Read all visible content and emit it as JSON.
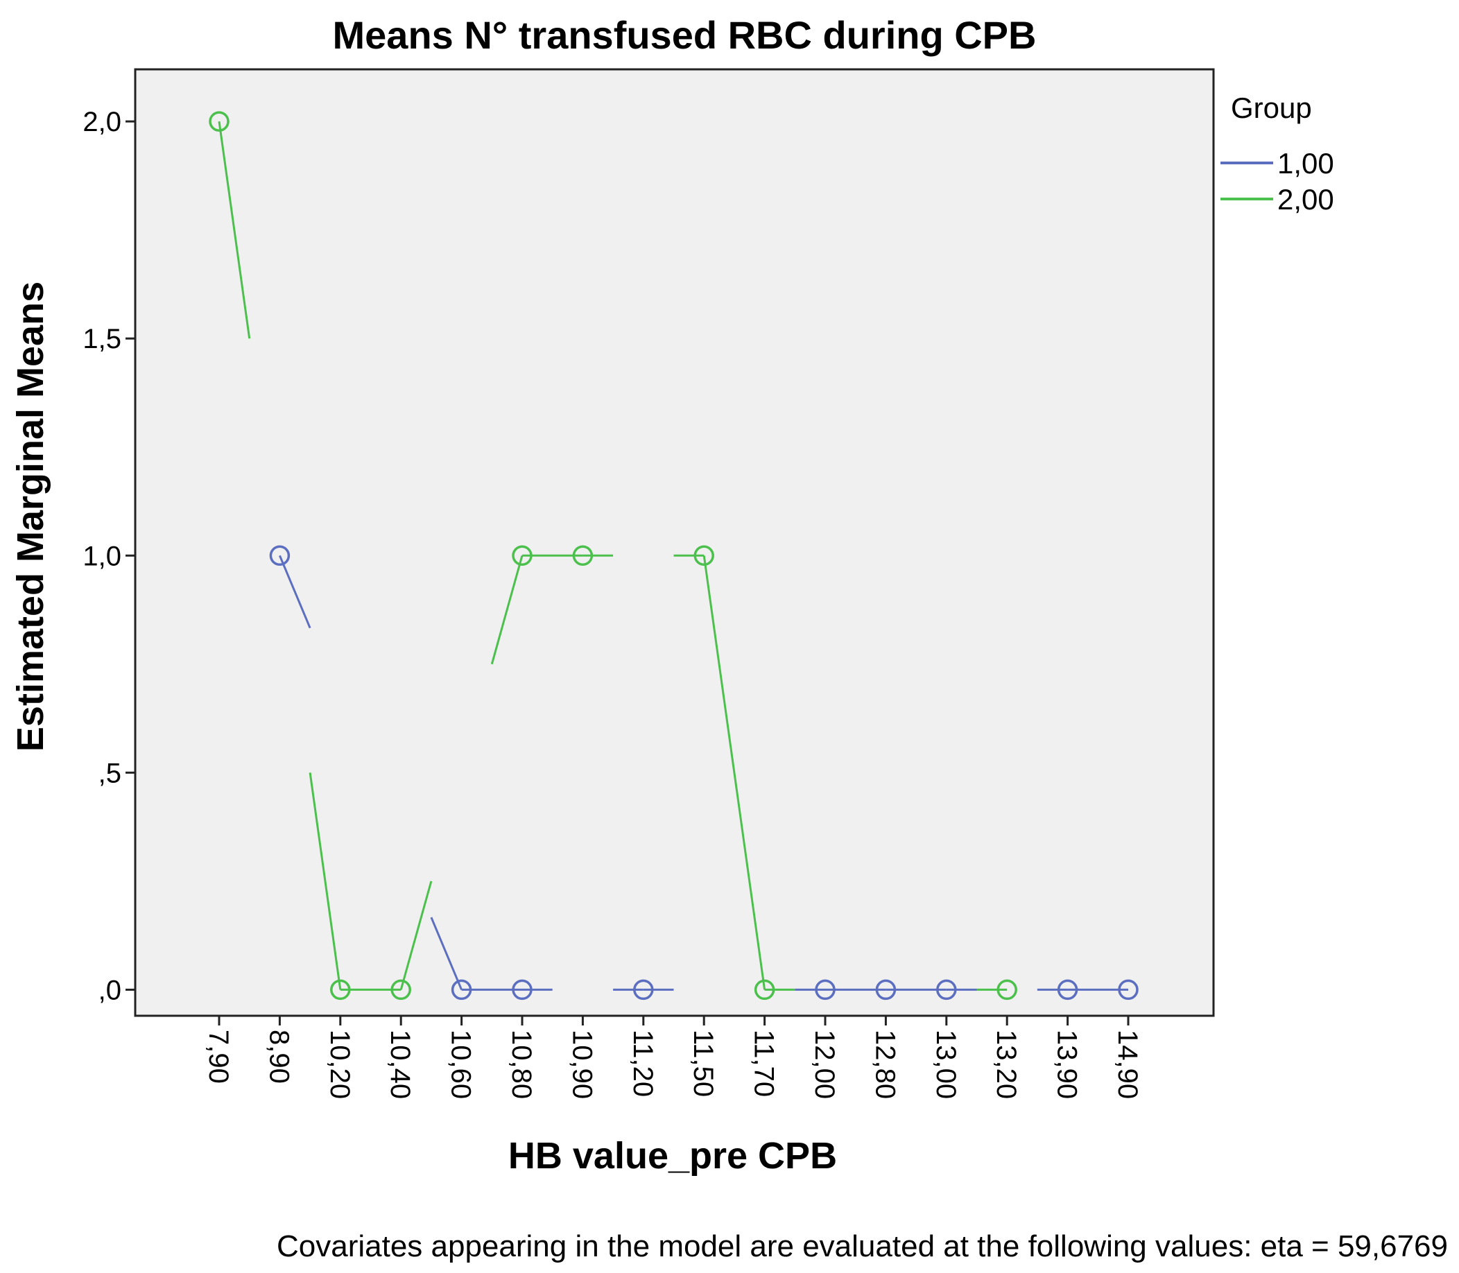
{
  "chart_data": {
    "type": "line",
    "title": "Means N° transfused RBC during CPB",
    "xlabel": "HB value_pre CPB",
    "ylabel": "Estimated Marginal Means",
    "categories": [
      "7,90",
      "8,90",
      "10,20",
      "10,40",
      "10,60",
      "10,80",
      "10,90",
      "11,20",
      "11,50",
      "11,70",
      "12,00",
      "12,80",
      "13,00",
      "13,20",
      "13,90",
      "14,90"
    ],
    "yticks": [
      {
        "value": 0,
        "label": ",0"
      },
      {
        "value": 0.5,
        "label": ",5"
      },
      {
        "value": 1.0,
        "label": "1,0"
      },
      {
        "value": 1.5,
        "label": "1,5"
      },
      {
        "value": 2.0,
        "label": "2,0"
      }
    ],
    "ylim": [
      -0.06,
      2.12
    ],
    "grid": false,
    "legend": {
      "title": "Group",
      "position": "right"
    },
    "series": [
      {
        "name": "1,00",
        "color": "#5b6ec0",
        "values": [
          null,
          1.0,
          null,
          null,
          0.0,
          0.0,
          null,
          0.0,
          null,
          null,
          0.0,
          0.0,
          0.0,
          null,
          0.0,
          0.0
        ]
      },
      {
        "name": "2,00",
        "color": "#4cc04c",
        "values": [
          2.0,
          null,
          0.0,
          0.0,
          null,
          1.0,
          1.0,
          null,
          1.0,
          0.0,
          null,
          null,
          null,
          0.0,
          null,
          null
        ]
      }
    ],
    "footnote": "Covariates appearing in the model are evaluated at the following values: eta = 59,6769"
  }
}
